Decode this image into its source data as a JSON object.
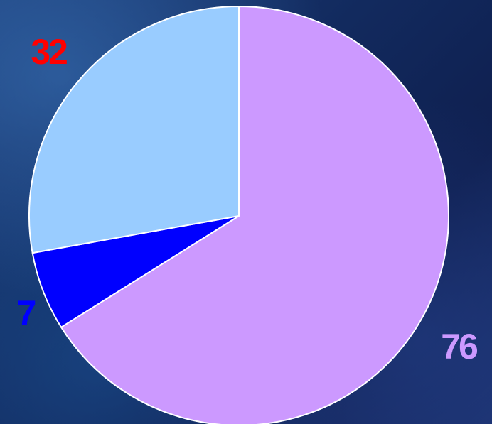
{
  "chart_data": {
    "type": "pie",
    "title": "",
    "slices": [
      {
        "value": 76,
        "label": "76",
        "color": "#cc99ff",
        "label_color": "#cc99ff"
      },
      {
        "value": 7,
        "label": "7",
        "color": "#0000ff",
        "label_color": "#0000ff"
      },
      {
        "value": 32,
        "label": "32",
        "color": "#99ccff",
        "label_color": "#ff0000"
      }
    ],
    "start_angle": "12 o'clock",
    "direction": "clockwise",
    "legend": "none"
  }
}
